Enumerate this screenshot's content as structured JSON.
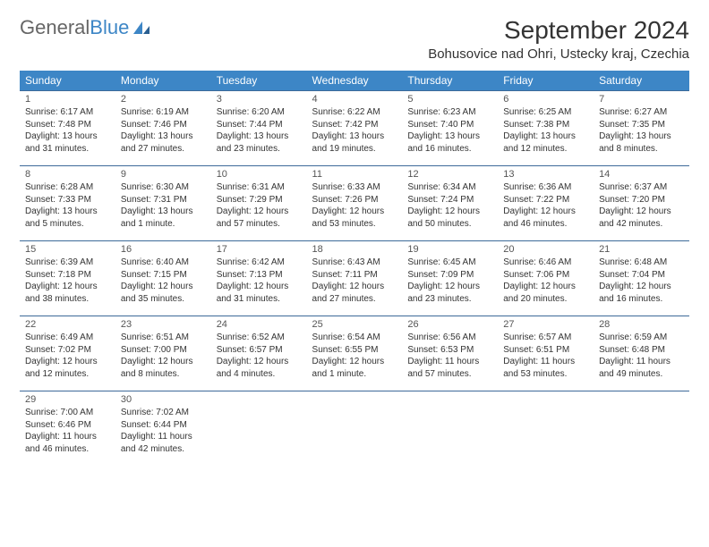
{
  "brand": {
    "part1": "General",
    "part2": "Blue"
  },
  "title": "September 2024",
  "location": "Bohusovice nad Ohri, Ustecky kraj, Czechia",
  "colors": {
    "header_bg": "#3d86c6",
    "header_text": "#ffffff",
    "cell_border": "#3d6a99",
    "body_text": "#333333",
    "logo_gray": "#666666",
    "logo_blue": "#3d86c6",
    "background": "#ffffff"
  },
  "typography": {
    "month_title_fontsize": 28,
    "location_fontsize": 15,
    "weekday_fontsize": 12,
    "daynum_fontsize": 11,
    "info_fontsize": 10
  },
  "weekdays": [
    "Sunday",
    "Monday",
    "Tuesday",
    "Wednesday",
    "Thursday",
    "Friday",
    "Saturday"
  ],
  "weeks": [
    [
      {
        "n": "1",
        "sunrise": "6:17 AM",
        "sunset": "7:48 PM",
        "daylight": "13 hours and 31 minutes."
      },
      {
        "n": "2",
        "sunrise": "6:19 AM",
        "sunset": "7:46 PM",
        "daylight": "13 hours and 27 minutes."
      },
      {
        "n": "3",
        "sunrise": "6:20 AM",
        "sunset": "7:44 PM",
        "daylight": "13 hours and 23 minutes."
      },
      {
        "n": "4",
        "sunrise": "6:22 AM",
        "sunset": "7:42 PM",
        "daylight": "13 hours and 19 minutes."
      },
      {
        "n": "5",
        "sunrise": "6:23 AM",
        "sunset": "7:40 PM",
        "daylight": "13 hours and 16 minutes."
      },
      {
        "n": "6",
        "sunrise": "6:25 AM",
        "sunset": "7:38 PM",
        "daylight": "13 hours and 12 minutes."
      },
      {
        "n": "7",
        "sunrise": "6:27 AM",
        "sunset": "7:35 PM",
        "daylight": "13 hours and 8 minutes."
      }
    ],
    [
      {
        "n": "8",
        "sunrise": "6:28 AM",
        "sunset": "7:33 PM",
        "daylight": "13 hours and 5 minutes."
      },
      {
        "n": "9",
        "sunrise": "6:30 AM",
        "sunset": "7:31 PM",
        "daylight": "13 hours and 1 minute."
      },
      {
        "n": "10",
        "sunrise": "6:31 AM",
        "sunset": "7:29 PM",
        "daylight": "12 hours and 57 minutes."
      },
      {
        "n": "11",
        "sunrise": "6:33 AM",
        "sunset": "7:26 PM",
        "daylight": "12 hours and 53 minutes."
      },
      {
        "n": "12",
        "sunrise": "6:34 AM",
        "sunset": "7:24 PM",
        "daylight": "12 hours and 50 minutes."
      },
      {
        "n": "13",
        "sunrise": "6:36 AM",
        "sunset": "7:22 PM",
        "daylight": "12 hours and 46 minutes."
      },
      {
        "n": "14",
        "sunrise": "6:37 AM",
        "sunset": "7:20 PM",
        "daylight": "12 hours and 42 minutes."
      }
    ],
    [
      {
        "n": "15",
        "sunrise": "6:39 AM",
        "sunset": "7:18 PM",
        "daylight": "12 hours and 38 minutes."
      },
      {
        "n": "16",
        "sunrise": "6:40 AM",
        "sunset": "7:15 PM",
        "daylight": "12 hours and 35 minutes."
      },
      {
        "n": "17",
        "sunrise": "6:42 AM",
        "sunset": "7:13 PM",
        "daylight": "12 hours and 31 minutes."
      },
      {
        "n": "18",
        "sunrise": "6:43 AM",
        "sunset": "7:11 PM",
        "daylight": "12 hours and 27 minutes."
      },
      {
        "n": "19",
        "sunrise": "6:45 AM",
        "sunset": "7:09 PM",
        "daylight": "12 hours and 23 minutes."
      },
      {
        "n": "20",
        "sunrise": "6:46 AM",
        "sunset": "7:06 PM",
        "daylight": "12 hours and 20 minutes."
      },
      {
        "n": "21",
        "sunrise": "6:48 AM",
        "sunset": "7:04 PM",
        "daylight": "12 hours and 16 minutes."
      }
    ],
    [
      {
        "n": "22",
        "sunrise": "6:49 AM",
        "sunset": "7:02 PM",
        "daylight": "12 hours and 12 minutes."
      },
      {
        "n": "23",
        "sunrise": "6:51 AM",
        "sunset": "7:00 PM",
        "daylight": "12 hours and 8 minutes."
      },
      {
        "n": "24",
        "sunrise": "6:52 AM",
        "sunset": "6:57 PM",
        "daylight": "12 hours and 4 minutes."
      },
      {
        "n": "25",
        "sunrise": "6:54 AM",
        "sunset": "6:55 PM",
        "daylight": "12 hours and 1 minute."
      },
      {
        "n": "26",
        "sunrise": "6:56 AM",
        "sunset": "6:53 PM",
        "daylight": "11 hours and 57 minutes."
      },
      {
        "n": "27",
        "sunrise": "6:57 AM",
        "sunset": "6:51 PM",
        "daylight": "11 hours and 53 minutes."
      },
      {
        "n": "28",
        "sunrise": "6:59 AM",
        "sunset": "6:48 PM",
        "daylight": "11 hours and 49 minutes."
      }
    ],
    [
      {
        "n": "29",
        "sunrise": "7:00 AM",
        "sunset": "6:46 PM",
        "daylight": "11 hours and 46 minutes."
      },
      {
        "n": "30",
        "sunrise": "7:02 AM",
        "sunset": "6:44 PM",
        "daylight": "11 hours and 42 minutes."
      },
      null,
      null,
      null,
      null,
      null
    ]
  ],
  "labels": {
    "sunrise": "Sunrise:",
    "sunset": "Sunset:",
    "daylight": "Daylight:"
  }
}
